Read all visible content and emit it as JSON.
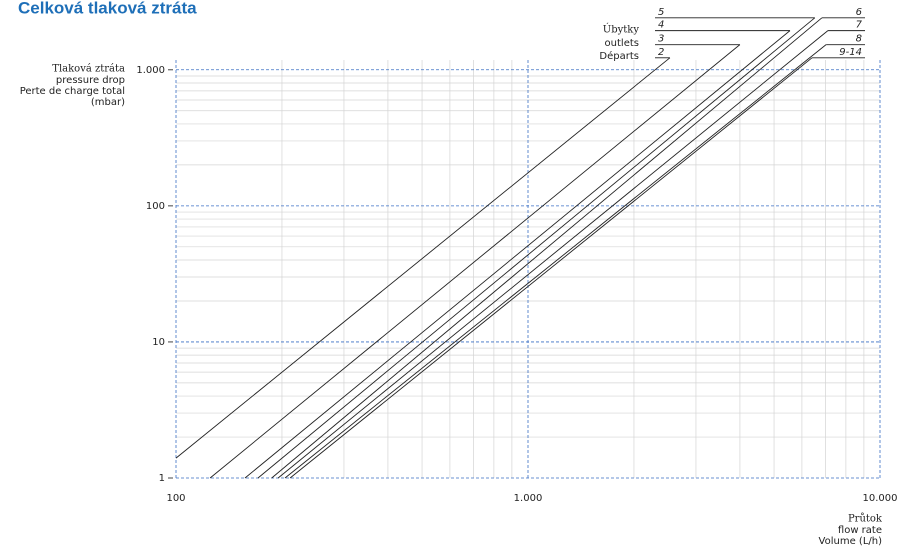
{
  "chart_data": {
    "type": "line",
    "title": "Celková tlaková ztráta",
    "y_label": [
      "Tlaková ztráta",
      "pressure drop",
      "Perte de charge total",
      "(mbar)"
    ],
    "x_label": [
      "Průtok",
      "flow rate",
      "Volume (L/h)"
    ],
    "legend_title": [
      "Úbytky",
      "outlets",
      "Départs"
    ],
    "log_x": true,
    "log_y": true,
    "grid": true,
    "xlim": [
      100,
      10000
    ],
    "ylim": [
      1,
      1180
    ],
    "xticks": [
      100,
      {
        "value": 1000,
        "label": "1.000"
      },
      {
        "value": 10000,
        "label": "10.000"
      }
    ],
    "yticks": [
      1,
      10,
      100,
      {
        "value": 1000,
        "label": "1.000"
      }
    ],
    "x_minor_ticks": [
      200,
      300,
      400,
      500,
      600,
      700,
      800,
      900,
      2000,
      3000,
      4000,
      5000,
      6000,
      7000,
      8000,
      9000
    ],
    "y_minor_ticks": [
      2,
      3,
      4,
      5,
      6,
      7,
      8,
      9,
      20,
      30,
      40,
      50,
      60,
      70,
      80,
      90,
      200,
      300,
      400,
      500,
      600,
      700,
      800,
      900
    ],
    "series": [
      {
        "name": "2",
        "color": "#222222",
        "legend_side": "left",
        "x": [
          100,
          2530
        ],
        "values": [
          1.4,
          1225
        ]
      },
      {
        "name": "3",
        "color": "#222222",
        "legend_side": "left",
        "x": [
          125,
          4000
        ],
        "values": [
          1,
          1530
        ]
      },
      {
        "name": "4",
        "color": "#222222",
        "legend_side": "left",
        "x": [
          157,
          5550
        ],
        "values": [
          1,
          1940
        ]
      },
      {
        "name": "5",
        "color": "#222222",
        "legend_side": "left",
        "x": [
          171,
          6530
        ],
        "values": [
          1,
          2410
        ]
      },
      {
        "name": "6",
        "color": "#222222",
        "legend_side": "right",
        "x": [
          187,
          6840
        ],
        "values": [
          1,
          2410
        ]
      },
      {
        "name": "7",
        "color": "#222222",
        "legend_side": "right",
        "x": [
          195,
          7110
        ],
        "values": [
          1,
          1940
        ]
      },
      {
        "name": "8",
        "color": "#222222",
        "legend_side": "right",
        "x": [
          204,
          7030
        ],
        "values": [
          1,
          1530
        ]
      },
      {
        "name": "9-14",
        "color": "#222222",
        "legend_side": "right",
        "x": [
          211,
          6410
        ],
        "values": [
          1,
          1225
        ]
      }
    ]
  }
}
